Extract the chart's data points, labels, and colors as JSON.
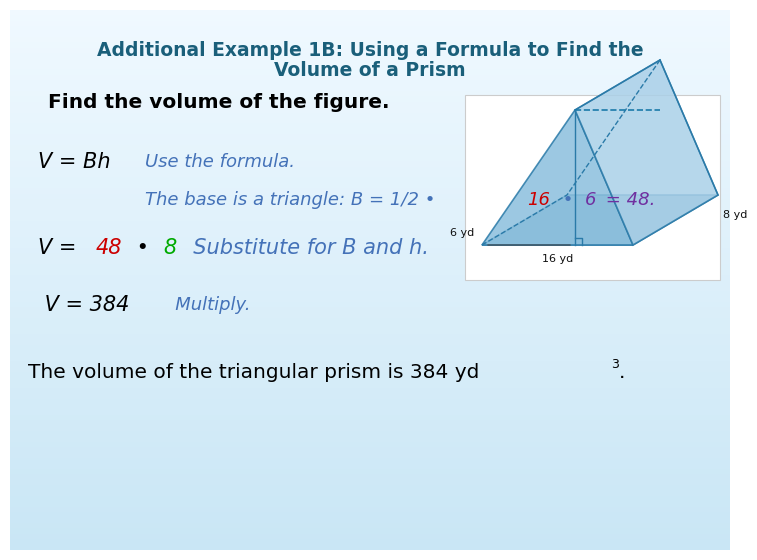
{
  "title_line1": "Additional Example 1B: Using a Formula to Find the",
  "title_line2": "Volume of a Prism",
  "title_color": "#1a5f7a",
  "subtitle": "Find the volume of the figure.",
  "subtitle_color": "#000000",
  "bg_color_top": "#c8e6f5",
  "bg_color_bottom": "#eaf6ff",
  "line1_left": "V = Bh",
  "line1_right": "Use the formula.",
  "line1_left_color": "#000000",
  "line1_right_color": "#4472b8",
  "line2_parts": [
    {
      "text": "The base is a triangle: B = 1/2 • ",
      "color": "#4472b8"
    },
    {
      "text": "16",
      "color": "#cc0000"
    },
    {
      "text": " • ",
      "color": "#4472b8"
    },
    {
      "text": "6",
      "color": "#7030a0"
    },
    {
      "text": " = 48.",
      "color": "#7030a0"
    }
  ],
  "line3_parts": [
    {
      "text": "V = ",
      "color": "#000000"
    },
    {
      "text": "48",
      "color": "#cc0000"
    },
    {
      "text": " • ",
      "color": "#000000"
    },
    {
      "text": "8",
      "color": "#00aa00"
    },
    {
      "text": "  Substitute for B and h.",
      "color": "#4472b8"
    }
  ],
  "line4_left": " V = 384",
  "line4_right": "   Multiply.",
  "line4_left_color": "#000000",
  "line4_right_color": "#4472b8",
  "prism_fill": "#8bbfdd",
  "prism_fill2": "#aad0e8",
  "prism_edge": "#2a7aa8",
  "prism_box_color": "#ffffff",
  "label_6yd": "6 yd",
  "label_8yd": "8 yd",
  "label_16yd": "16 yd"
}
